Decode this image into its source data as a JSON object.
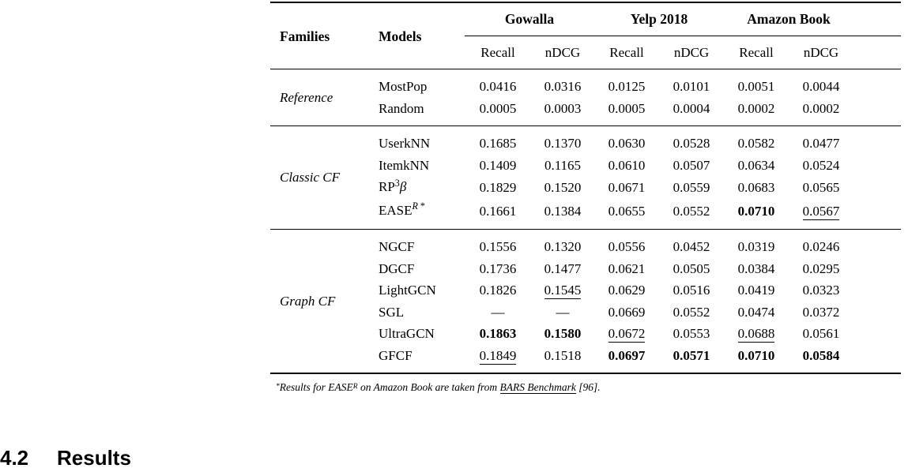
{
  "table": {
    "header": {
      "families": "Families",
      "models": "Models",
      "groups": [
        "Gowalla",
        "Yelp 2018",
        "Amazon Book"
      ],
      "metrics": [
        "Recall",
        "nDCG",
        "Recall",
        "nDCG",
        "Recall",
        "nDCG"
      ]
    },
    "families": [
      {
        "name": "Reference",
        "rows": [
          {
            "model": [
              {
                "t": "MostPop"
              }
            ],
            "values": [
              "0.0416",
              "0.0316",
              "0.0125",
              "0.0101",
              "0.0051",
              "0.0044"
            ]
          },
          {
            "model": [
              {
                "t": "Random"
              }
            ],
            "values": [
              "0.0005",
              "0.0003",
              "0.0005",
              "0.0004",
              "0.0002",
              "0.0002"
            ]
          }
        ]
      },
      {
        "name": "Classic CF",
        "rows": [
          {
            "model": [
              {
                "t": "UserkNN"
              }
            ],
            "values": [
              "0.1685",
              "0.1370",
              "0.0630",
              "0.0528",
              "0.0582",
              "0.0477"
            ]
          },
          {
            "model": [
              {
                "t": "ItemkNN"
              }
            ],
            "values": [
              "0.1409",
              "0.1165",
              "0.0610",
              "0.0507",
              "0.0634",
              "0.0524"
            ]
          },
          {
            "model": [
              {
                "t": "RP"
              },
              {
                "t": "3",
                "sup": true
              },
              {
                "t": "β",
                "italic": true
              }
            ],
            "values": [
              "0.1829",
              "0.1520",
              "0.0671",
              "0.0559",
              "0.0683",
              "0.0565"
            ]
          },
          {
            "model": [
              {
                "t": "EASE"
              },
              {
                "t": "R",
                "sup": true,
                "italic": true
              },
              {
                "t": " *",
                "sup": true
              }
            ],
            "values": [
              "0.1661",
              "0.1384",
              "0.0655",
              "0.0552",
              {
                "t": "0.0710",
                "bold": true
              },
              {
                "t": "0.0567",
                "underline": true
              }
            ]
          }
        ]
      },
      {
        "name": "Graph CF",
        "rows": [
          {
            "model": [
              {
                "t": "NGCF"
              }
            ],
            "values": [
              "0.1556",
              "0.1320",
              "0.0556",
              "0.0452",
              "0.0319",
              "0.0246"
            ]
          },
          {
            "model": [
              {
                "t": "DGCF"
              }
            ],
            "values": [
              "0.1736",
              "0.1477",
              "0.0621",
              "0.0505",
              "0.0384",
              "0.0295"
            ]
          },
          {
            "model": [
              {
                "t": "LightGCN"
              }
            ],
            "values": [
              "0.1826",
              {
                "t": "0.1545",
                "underline": true
              },
              "0.0629",
              "0.0516",
              "0.0419",
              "0.0323"
            ]
          },
          {
            "model": [
              {
                "t": "SGL"
              }
            ],
            "values": [
              "—",
              "—",
              "0.0669",
              "0.0552",
              "0.0474",
              "0.0372"
            ]
          },
          {
            "model": [
              {
                "t": "UltraGCN"
              }
            ],
            "values": [
              {
                "t": "0.1863",
                "bold": true
              },
              {
                "t": "0.1580",
                "bold": true
              },
              {
                "t": "0.0672",
                "underline": true
              },
              "0.0553",
              {
                "t": "0.0688",
                "underline": true
              },
              "0.0561"
            ]
          },
          {
            "model": [
              {
                "t": "GFCF"
              }
            ],
            "values": [
              {
                "t": "0.1849",
                "underline": true
              },
              "0.1518",
              {
                "t": "0.0697",
                "bold": true
              },
              {
                "t": "0.0571",
                "bold": true
              },
              {
                "t": "0.0710",
                "bold": true
              },
              {
                "t": "0.0584",
                "bold": true
              }
            ]
          }
        ]
      }
    ],
    "footnote": [
      {
        "t": "*",
        "sup": true
      },
      {
        "t": "Results for EASE"
      },
      {
        "t": "R",
        "sup": true
      },
      {
        "t": " on Amazon Book are taken from "
      },
      {
        "t": "BARS Benchmark",
        "underline": true,
        "link": true
      },
      {
        "t": " [96]."
      }
    ]
  },
  "section": {
    "number": "4.2",
    "title": "Results"
  }
}
